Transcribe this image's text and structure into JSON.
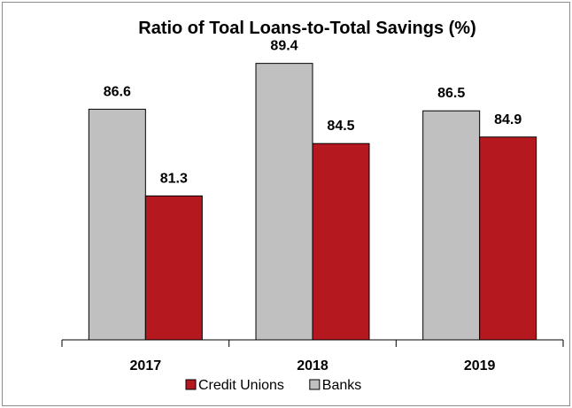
{
  "chart_data": {
    "type": "bar",
    "title": "Ratio of Toal Loans-to-Total Savings (%)",
    "xlabel": "",
    "ylabel": "",
    "categories": [
      "2017",
      "2018",
      "2019"
    ],
    "series": [
      {
        "name": "Banks",
        "values": [
          86.6,
          89.4,
          86.5
        ],
        "color": "#c0c0c0"
      },
      {
        "name": "Credit Unions",
        "values": [
          81.3,
          84.5,
          84.9
        ],
        "color": "#b5191f"
      }
    ],
    "legend_order": [
      "Credit Unions",
      "Banks"
    ],
    "ylim": [
      72.5,
      90.3
    ],
    "grid": false,
    "legend_position": "bottom"
  }
}
